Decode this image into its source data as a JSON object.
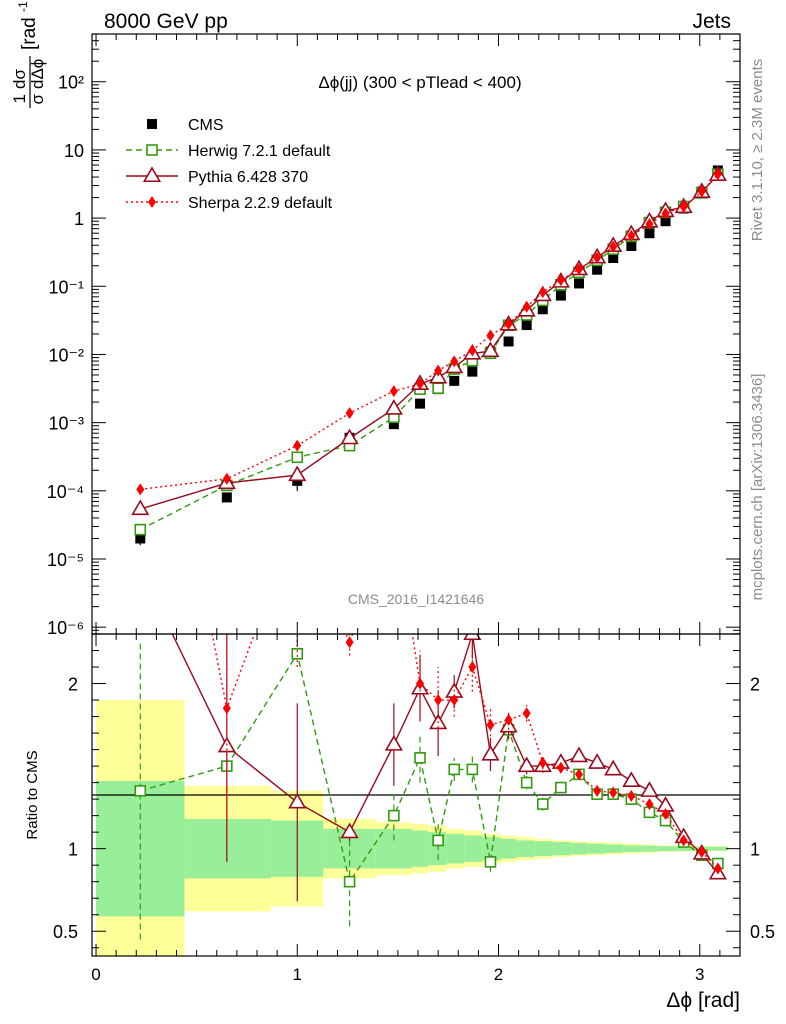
{
  "header": {
    "left": "8000 GeV pp",
    "right": "Jets"
  },
  "side": {
    "rivet": "Rivet 3.1.10, ≥ 2.3M events",
    "mcplots": "mcplots.cern.ch [arXiv:1306.3436]"
  },
  "chart_data": {
    "type": "line",
    "title": "Δϕ(jj) (300 < pTlead <  400)",
    "analysis_id": "CMS_2016_I1421646",
    "xlabel": "Δϕ [rad]",
    "ylabel_main": "1/σ dσ/dΔϕ [rad⁻¹]",
    "ylabel_ratio": "Ratio to CMS",
    "xlim": [
      -0.02,
      3.2
    ],
    "ylim_main_log10": [
      -6.1,
      2.7
    ],
    "ylim_ratio": [
      0.35,
      2.3
    ],
    "x_ticks": [
      "0",
      "1",
      "2",
      "3"
    ],
    "main_y_ticks": [
      "10⁻⁶",
      "10⁻⁵",
      "10⁻⁴",
      "10⁻³",
      "10⁻²",
      "10⁻¹",
      "1",
      "10",
      "10²"
    ],
    "ratio_y_ticks": [
      "0.5",
      "1",
      "2"
    ],
    "x": [
      0.22,
      0.65,
      1.0,
      1.26,
      1.48,
      1.61,
      1.7,
      1.78,
      1.87,
      1.96,
      2.05,
      2.14,
      2.22,
      2.31,
      2.4,
      2.49,
      2.57,
      2.66,
      2.75,
      2.83,
      2.92,
      3.01,
      3.09
    ],
    "band_edges": [
      0.0,
      0.44,
      0.87,
      1.13,
      1.39,
      1.57,
      1.65,
      1.74,
      1.83,
      1.92,
      2.01,
      2.09,
      2.18,
      2.27,
      2.36,
      2.44,
      2.53,
      2.62,
      2.71,
      2.79,
      2.88,
      2.97,
      3.05,
      3.14
    ],
    "band_inner": [
      0.41,
      0.18,
      0.17,
      0.12,
      0.12,
      0.11,
      0.1,
      0.09,
      0.08,
      0.07,
      0.06,
      0.05,
      0.045,
      0.04,
      0.035,
      0.03,
      0.025,
      0.02,
      0.018,
      0.015,
      0.013,
      0.012,
      0.012
    ],
    "band_outer": [
      0.9,
      0.38,
      0.35,
      0.18,
      0.16,
      0.15,
      0.14,
      0.12,
      0.11,
      0.09,
      0.08,
      0.07,
      0.06,
      0.05,
      0.045,
      0.04,
      0.035,
      0.03,
      0.025,
      0.02,
      0.018,
      0.016,
      0.015
    ],
    "series": [
      {
        "name": "CMS",
        "color": "#000000",
        "marker": "square-filled",
        "values": [
          2e-05,
          8e-05,
          0.00014,
          0.0006,
          0.00095,
          0.0019,
          0.0031,
          0.0041,
          0.0056,
          0.011,
          0.0155,
          0.027,
          0.046,
          0.073,
          0.11,
          0.175,
          0.26,
          0.39,
          0.6,
          0.9,
          1.38,
          2.45,
          5.0
        ],
        "errors": [
          4e-06,
          1e-05,
          4e-05,
          8e-05,
          0.0001,
          0.0002,
          0.0003,
          0.0003,
          0.0004,
          0.0008,
          0.001,
          0.0015,
          0.002,
          0.003,
          0.004,
          0.005,
          0.006,
          0.008,
          0.01,
          0.015,
          0.02,
          0.03,
          0.05
        ],
        "ratio": [
          1.0,
          1.0,
          1.0,
          1.0,
          1.0,
          1.0,
          1.0,
          1.0,
          1.0,
          1.0,
          1.0,
          1.0,
          1.0,
          1.0,
          1.0,
          1.0,
          1.0,
          1.0,
          1.0,
          1.0,
          1.0,
          1.0,
          1.0
        ]
      },
      {
        "name": "Herwig 7.2.1 default",
        "color": "#339911",
        "marker": "square-open",
        "dash": "6,4",
        "values": [
          2.7e-05,
          0.00012,
          0.00031,
          0.00046,
          0.0012,
          0.0031,
          0.0032,
          0.0061,
          0.0081,
          0.0104,
          0.0268,
          0.038,
          0.062,
          0.105,
          0.16,
          0.24,
          0.35,
          0.54,
          0.86,
          1.22,
          1.48,
          2.34,
          4.4
        ],
        "ratio": [
          1.35,
          1.5,
          2.18,
          0.8,
          1.2,
          1.55,
          1.05,
          1.48,
          1.48,
          0.92,
          1.72,
          1.4,
          1.27,
          1.37,
          1.45,
          1.33,
          1.33,
          1.3,
          1.22,
          1.17,
          1.04,
          0.96,
          0.91
        ],
        "ratio_err": [
          0.9,
          0.0,
          0.0,
          0.27,
          0.15,
          0.15,
          0.12,
          0.07,
          0.08,
          0.06,
          0.05,
          0.04,
          0.04,
          0.03,
          0.03,
          0.02,
          0.02,
          0.02,
          0.02,
          0.02,
          0.02,
          0.01,
          0.01
        ]
      },
      {
        "name": "Pythia 6.428 370",
        "color": "#990a1e",
        "marker": "triangle-open",
        "dash": "",
        "values": [
          5.4e-05,
          0.00013,
          0.00017,
          0.00059,
          0.0016,
          0.0037,
          0.0046,
          0.0065,
          0.0103,
          0.0112,
          0.0274,
          0.044,
          0.074,
          0.117,
          0.178,
          0.265,
          0.39,
          0.58,
          0.89,
          1.27,
          1.45,
          2.42,
          4.3
        ],
        "ratio": [
          2.7,
          1.62,
          1.28,
          1.1,
          1.63,
          1.97,
          1.76,
          1.95,
          2.3,
          1.57,
          1.74,
          1.5,
          1.5,
          1.52,
          1.56,
          1.52,
          1.48,
          1.41,
          1.35,
          1.26,
          1.07,
          0.97,
          0.85
        ],
        "ratio_err": [
          0.0,
          0.7,
          0.6,
          0.05,
          0.25,
          0.2,
          0.2,
          0.1,
          0.15,
          0.1,
          0.08,
          0.05,
          0.04,
          0.03,
          0.03,
          0.02,
          0.02,
          0.02,
          0.02,
          0.02,
          0.02,
          0.01,
          0.01
        ]
      },
      {
        "name": "Sherpa 2.2.9 default",
        "color": "#ff0000",
        "marker": "diamond-filled",
        "dash": "2,3",
        "values": [
          0.000105,
          0.00015,
          0.00046,
          0.00138,
          0.0029,
          0.0037,
          0.0058,
          0.0079,
          0.0115,
          0.019,
          0.028,
          0.05,
          0.082,
          0.123,
          0.178,
          0.262,
          0.38,
          0.55,
          0.82,
          1.17,
          1.46,
          2.45,
          4.4
        ],
        "ratio": [
          4.5,
          1.85,
          3.0,
          2.25,
          3.0,
          2.0,
          1.9,
          1.9,
          2.1,
          1.75,
          1.78,
          1.82,
          1.52,
          1.49,
          1.45,
          1.35,
          1.34,
          1.32,
          1.27,
          1.21,
          1.05,
          0.98,
          0.88
        ],
        "ratio_err": [
          0.8,
          0.8,
          0.9,
          0.08,
          0.3,
          0.2,
          0.2,
          0.1,
          0.15,
          0.1,
          0.06,
          0.05,
          0.04,
          0.03,
          0.03,
          0.02,
          0.02,
          0.02,
          0.02,
          0.02,
          0.02,
          0.01,
          0.01
        ]
      }
    ]
  }
}
